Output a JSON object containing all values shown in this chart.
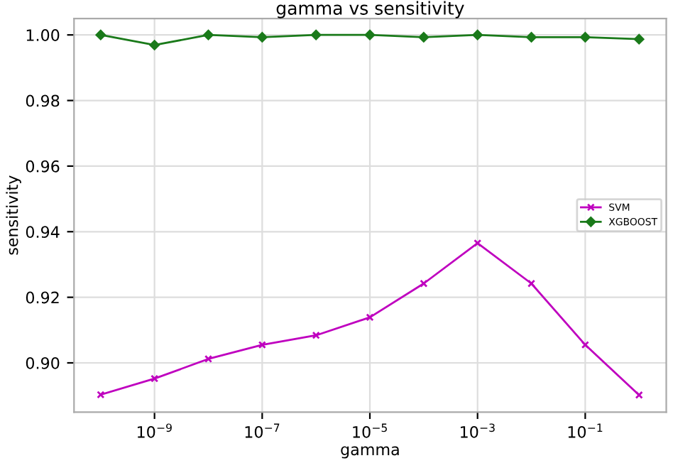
{
  "chart_data": {
    "type": "line",
    "title": "gamma vs sensitivity",
    "xlabel": "gamma",
    "ylabel": "sensitivity",
    "x": [
      1e-10,
      1e-09,
      1e-08,
      1e-07,
      1e-06,
      1e-05,
      0.0001,
      0.001,
      0.01,
      0.1,
      1
    ],
    "series": [
      {
        "name": "SVM",
        "color": "#bf00bf",
        "marker": "cross",
        "values": [
          0.8903,
          0.8952,
          0.9012,
          0.9055,
          0.9084,
          0.9139,
          0.9242,
          0.9365,
          0.9242,
          0.9055,
          0.8902
        ]
      },
      {
        "name": "XGBOOST",
        "color": "#1a7a1a",
        "marker": "diamond",
        "values": [
          1.0,
          0.9969,
          1.0,
          0.9993,
          1.0,
          1.0,
          0.9993,
          1.0,
          0.9993,
          0.9993,
          0.9987
        ]
      }
    ],
    "log": "x",
    "xlim": [
      3.2e-11,
      3.2
    ],
    "xticks": [
      {
        "value": 1e-09,
        "label": "10$^{−9}$"
      },
      {
        "value": 1e-07,
        "label": "10$^{−7}$"
      },
      {
        "value": 1e-05,
        "label": "10$^{−5}$"
      },
      {
        "value": 0.001,
        "label": "10$^{−3}$"
      },
      {
        "value": 0.1,
        "label": "10$^{−1}$"
      }
    ],
    "ylim": [
      0.885,
      1.005
    ],
    "yticks": [
      {
        "value": 0.9,
        "label": "0.90"
      },
      {
        "value": 0.92,
        "label": "0.92"
      },
      {
        "value": 0.94,
        "label": "0.94"
      },
      {
        "value": 0.96,
        "label": "0.96"
      },
      {
        "value": 0.98,
        "label": "0.98"
      },
      {
        "value": 1.0,
        "label": "1.00"
      }
    ],
    "grid": true,
    "legend": "center right",
    "line_style": "solid"
  }
}
